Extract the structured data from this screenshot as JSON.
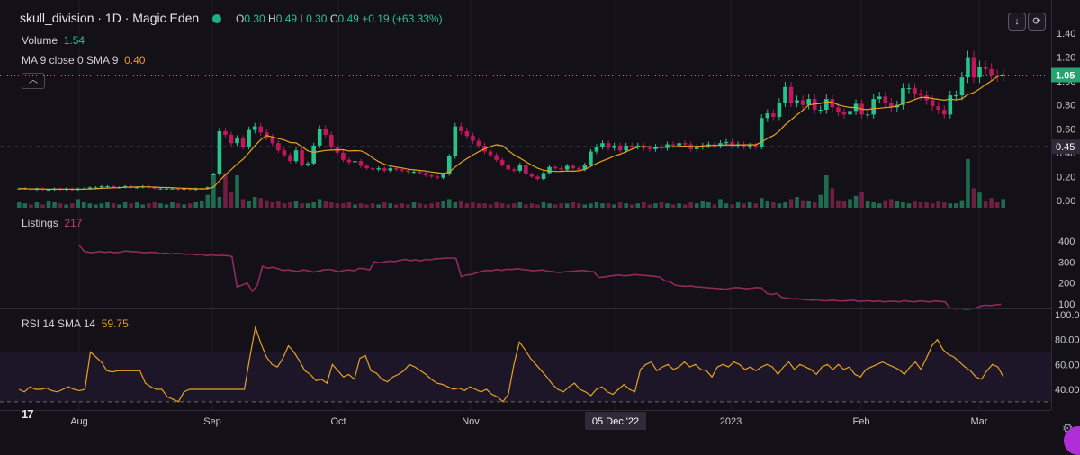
{
  "header": {
    "title": "skull_division · 1D · Magic Eden",
    "ohlc": {
      "o_label": "O",
      "o": "0.30",
      "h_label": "H",
      "h": "0.49",
      "l_label": "L",
      "l": "0.30",
      "c_label": "C",
      "c": "0.49",
      "change": "+0.19 (+63.33%)"
    },
    "volume_label": "Volume",
    "volume_value": "1.54",
    "ma_label": "MA 9 close 0 SMA 9",
    "ma_value": "0.40",
    "collapse_icon": "chevron-up-icon",
    "buttons": [
      {
        "icon": "download-icon",
        "glyph": "↓"
      },
      {
        "icon": "refresh-icon",
        "glyph": "⟳"
      }
    ]
  },
  "chart_data": [
    {
      "type": "candlestick",
      "title": "skull_division · 1D · Magic Eden",
      "x_ticks": [
        "Aug",
        "Sep",
        "Oct",
        "Nov",
        "05 Dec '22",
        "2023",
        "Feb",
        "Mar"
      ],
      "crosshair_x": "05 Dec '22",
      "y_ticks": [
        "1.40",
        "1.20",
        "1.00",
        "0.80",
        "0.60",
        "0.40",
        "0.20",
        "0.00"
      ],
      "ylim": [
        0,
        1.4
      ],
      "current_price_label": "1.05",
      "crosshair_price_label": "0.45",
      "ma": {
        "name": "MA 9 close 0 SMA 9",
        "value": "0.40"
      },
      "volume": {
        "name": "Volume",
        "value": "1.54"
      },
      "close": [
        0.1,
        0.1,
        0.09,
        0.1,
        0.09,
        0.09,
        0.1,
        0.09,
        0.1,
        0.09,
        0.1,
        0.1,
        0.11,
        0.11,
        0.12,
        0.12,
        0.11,
        0.11,
        0.12,
        0.11,
        0.11,
        0.12,
        0.11,
        0.1,
        0.1,
        0.1,
        0.1,
        0.09,
        0.1,
        0.09,
        0.1,
        0.1,
        0.11,
        0.22,
        0.58,
        0.55,
        0.48,
        0.52,
        0.45,
        0.59,
        0.62,
        0.57,
        0.53,
        0.48,
        0.42,
        0.38,
        0.33,
        0.42,
        0.3,
        0.31,
        0.46,
        0.6,
        0.55,
        0.45,
        0.4,
        0.34,
        0.32,
        0.33,
        0.29,
        0.27,
        0.26,
        0.27,
        0.25,
        0.27,
        0.26,
        0.25,
        0.24,
        0.24,
        0.23,
        0.21,
        0.2,
        0.19,
        0.22,
        0.37,
        0.62,
        0.58,
        0.54,
        0.5,
        0.46,
        0.41,
        0.38,
        0.34,
        0.3,
        0.26,
        0.25,
        0.3,
        0.22,
        0.2,
        0.18,
        0.23,
        0.28,
        0.27,
        0.26,
        0.29,
        0.27,
        0.26,
        0.3,
        0.41,
        0.45,
        0.48,
        0.44,
        0.46,
        0.42,
        0.46,
        0.45,
        0.46,
        0.44,
        0.43,
        0.45,
        0.44,
        0.47,
        0.46,
        0.48,
        0.47,
        0.43,
        0.45,
        0.46,
        0.47,
        0.46,
        0.48,
        0.49,
        0.46,
        0.47,
        0.45,
        0.46,
        0.45,
        0.69,
        0.73,
        0.7,
        0.82,
        0.95,
        0.82,
        0.84,
        0.8,
        0.85,
        0.76,
        0.76,
        0.85,
        0.78,
        0.74,
        0.72,
        0.75,
        0.81,
        0.72,
        0.72,
        0.85,
        0.87,
        0.82,
        0.78,
        0.8,
        0.94,
        0.94,
        0.89,
        0.88,
        0.84,
        0.79,
        0.76,
        0.72,
        0.88,
        0.88,
        1.03,
        1.2,
        1.03,
        1.12,
        1.1,
        1.05,
        1.04,
        1.05
      ],
      "volume_values": [
        0.5,
        0.4,
        0.3,
        0.5,
        0.3,
        0.6,
        0.5,
        0.4,
        0.3,
        0.4,
        0.8,
        0.5,
        0.4,
        0.3,
        0.4,
        0.5,
        0.4,
        0.3,
        0.5,
        0.4,
        0.5,
        0.3,
        0.4,
        0.5,
        0.4,
        0.3,
        0.5,
        0.4,
        0.3,
        0.4,
        0.5,
        0.6,
        1.2,
        3.0,
        1.0,
        3.2,
        1.4,
        3.0,
        0.8,
        0.6,
        1.0,
        0.9,
        0.7,
        0.5,
        0.6,
        0.4,
        0.5,
        0.6,
        0.4,
        0.4,
        0.5,
        0.8,
        0.6,
        0.5,
        0.4,
        0.4,
        0.5,
        0.3,
        0.4,
        0.3,
        0.4,
        0.3,
        0.5,
        0.4,
        0.3,
        0.4,
        0.3,
        0.5,
        0.4,
        0.3,
        0.4,
        0.5,
        0.6,
        0.8,
        0.5,
        0.6,
        0.4,
        0.5,
        0.4,
        0.4,
        0.3,
        0.5,
        0.4,
        0.3,
        0.4,
        0.5,
        0.3,
        0.4,
        0.3,
        0.5,
        0.4,
        0.3,
        0.4,
        0.4,
        0.5,
        0.4,
        0.3,
        0.4,
        0.5,
        0.4,
        0.4,
        0.3,
        0.5,
        0.4,
        0.3,
        0.4,
        0.5,
        0.3,
        0.4,
        0.5,
        0.4,
        0.3,
        0.4,
        0.3,
        0.5,
        0.4,
        0.6,
        0.5,
        0.3,
        0.8,
        0.4,
        0.3,
        0.5,
        0.4,
        0.5,
        0.4,
        0.9,
        0.6,
        0.5,
        0.4,
        0.5,
        0.8,
        1.0,
        0.7,
        0.6,
        0.5,
        1.2,
        3.0,
        1.8,
        0.7,
        0.6,
        0.8,
        1.1,
        1.5,
        0.6,
        0.5,
        0.4,
        0.7,
        0.8,
        0.6,
        0.5,
        0.4,
        0.6,
        0.5,
        0.5,
        0.4,
        0.6,
        0.5,
        0.4,
        0.4,
        0.7,
        4.5,
        1.8,
        1.4,
        0.6,
        0.9,
        0.5,
        0.8
      ]
    },
    {
      "type": "line",
      "title": "Listings",
      "series_name": "Listings",
      "current_value": "217",
      "y_ticks": [
        "400",
        "300",
        "200",
        "100"
      ],
      "ylim": [
        40,
        420
      ],
      "values": [
        380,
        350,
        345,
        345,
        350,
        345,
        348,
        344,
        346,
        352,
        350,
        348,
        346,
        344,
        346,
        345,
        340,
        342,
        338,
        341,
        340,
        336,
        338,
        334,
        336,
        330,
        334,
        330,
        332,
        330,
        326,
        180,
        190,
        200,
        160,
        190,
        280,
        270,
        275,
        268,
        260,
        262,
        258,
        255,
        262,
        258,
        252,
        256,
        262,
        265,
        260,
        254,
        260,
        262,
        258,
        270,
        268,
        262,
        300,
        296,
        300,
        304,
        302,
        308,
        312,
        306,
        310,
        305,
        312,
        310,
        315,
        316,
        318,
        318,
        317,
        230,
        238,
        240,
        248,
        256,
        260,
        258,
        264,
        260,
        266,
        264,
        268,
        264,
        262,
        258,
        260,
        262,
        256,
        254,
        250,
        252,
        254,
        256,
        258,
        260,
        255,
        254,
        226,
        228,
        232,
        236,
        238,
        234,
        236,
        240,
        238,
        236,
        234,
        232,
        228,
        210,
        206,
        190,
        186,
        184,
        186,
        182,
        180,
        178,
        176,
        174,
        172,
        170,
        175,
        178,
        176,
        172,
        175,
        178,
        176,
        150,
        145,
        150,
        130,
        128,
        124,
        125,
        122,
        120,
        118,
        120,
        115,
        116,
        118,
        115,
        114,
        116,
        118,
        112,
        114,
        115,
        112,
        114,
        110,
        112,
        113,
        110,
        116,
        112,
        110,
        114,
        112,
        110,
        114,
        112,
        110,
        80,
        76,
        78,
        74,
        76,
        80,
        90,
        94,
        92,
        96,
        98
      ]
    },
    {
      "type": "line",
      "title": "RSI 14 SMA 14",
      "series_name": "RSI 14 SMA 14",
      "current_value": "59.75",
      "y_ticks": [
        "100.00",
        "80.00",
        "60.00",
        "40.00"
      ],
      "ylim": [
        24,
        100
      ],
      "bands": [
        30,
        70
      ],
      "values": [
        40,
        38,
        42,
        40,
        40,
        41,
        39,
        38,
        40,
        42,
        40,
        39,
        40,
        70,
        66,
        62,
        55,
        54,
        55,
        55,
        55,
        55,
        55,
        45,
        42,
        40,
        40,
        34,
        32,
        30,
        38,
        40,
        40,
        40,
        40,
        40,
        40,
        40,
        40,
        40,
        40,
        40,
        66,
        90,
        77,
        66,
        60,
        58,
        65,
        75,
        70,
        63,
        55,
        52,
        47,
        48,
        45,
        60,
        55,
        50,
        52,
        48,
        65,
        67,
        55,
        53,
        48,
        46,
        50,
        52,
        55,
        60,
        58,
        55,
        52,
        48,
        45,
        44,
        42,
        40,
        41,
        39,
        42,
        40,
        38,
        40,
        36,
        34,
        30,
        36,
        60,
        78,
        72,
        65,
        60,
        55,
        50,
        44,
        40,
        38,
        42,
        45,
        40,
        38,
        35,
        40,
        42,
        38,
        36,
        40,
        44,
        40,
        38,
        56,
        60,
        62,
        55,
        58,
        60,
        56,
        58,
        62,
        58,
        60,
        56,
        55,
        50,
        58,
        60,
        58,
        62,
        60,
        56,
        58,
        55,
        58,
        60,
        58,
        52,
        58,
        62,
        56,
        60,
        58,
        56,
        52,
        58,
        60,
        56,
        60,
        56,
        58,
        52,
        50,
        56,
        58,
        60,
        62,
        60,
        58,
        56,
        52,
        58,
        62,
        56,
        65,
        75,
        80,
        72,
        68,
        66,
        62,
        58,
        55,
        50,
        48,
        55,
        60,
        58,
        50
      ]
    }
  ]
}
